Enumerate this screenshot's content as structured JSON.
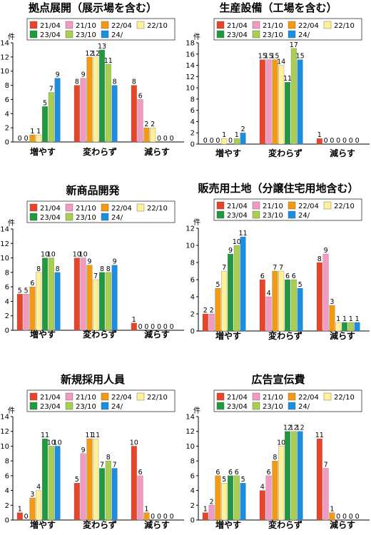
{
  "colors": {
    "21/04": "#e8442a",
    "21/10": "#f29ac2",
    "22/04": "#f39a11",
    "22/10": "#fff09a",
    "23/04": "#1f9a3e",
    "23/10": "#a8cf4f",
    "24/": "#1a8fe0"
  },
  "chart_data": [
    {
      "type": "bar",
      "title": "拠点展開（展示場を含む）",
      "ylabel": "件",
      "ylim": [
        0,
        14
      ],
      "yticks": [
        0,
        2,
        4,
        6,
        8,
        10,
        12,
        14
      ],
      "categories": [
        "増やす",
        "変わらず",
        "減らす"
      ],
      "legend_position": "top",
      "series": [
        {
          "name": "21/04",
          "values": [
            0,
            8,
            8
          ]
        },
        {
          "name": "21/10",
          "values": [
            0,
            9,
            6
          ]
        },
        {
          "name": "22/04",
          "values": [
            1,
            12,
            2
          ]
        },
        {
          "name": "22/10",
          "values": [
            1,
            12,
            2
          ]
        },
        {
          "name": "23/04",
          "values": [
            5,
            13,
            0
          ]
        },
        {
          "name": "23/10",
          "values": [
            7,
            11,
            0
          ]
        },
        {
          "name": "24/",
          "values": [
            9,
            8,
            0
          ]
        }
      ]
    },
    {
      "type": "bar",
      "title": "生産設備（工場を含む）",
      "ylabel": "件",
      "ylim": [
        0,
        18
      ],
      "yticks": [
        0,
        2,
        4,
        6,
        8,
        10,
        12,
        14,
        16,
        18
      ],
      "categories": [
        "増やす",
        "変わらず",
        "減らす"
      ],
      "legend_position": "top",
      "series": [
        {
          "name": "21/04",
          "values": [
            0,
            15,
            1
          ]
        },
        {
          "name": "21/10",
          "values": [
            0,
            15,
            0
          ]
        },
        {
          "name": "22/04",
          "values": [
            0,
            15,
            0
          ]
        },
        {
          "name": "22/10",
          "values": [
            1,
            14,
            0
          ]
        },
        {
          "name": "23/04",
          "values": [
            0,
            11,
            0
          ]
        },
        {
          "name": "23/10",
          "values": [
            1,
            17,
            0
          ]
        },
        {
          "name": "24/",
          "values": [
            2,
            15,
            0
          ]
        }
      ]
    },
    {
      "type": "bar",
      "title": "新商品開発",
      "ylabel": "件",
      "ylim": [
        0,
        14
      ],
      "yticks": [
        0,
        2,
        4,
        6,
        8,
        10,
        12,
        14
      ],
      "categories": [
        "増やす",
        "変わらず",
        "減らす"
      ],
      "legend_position": "top",
      "series": [
        {
          "name": "21/04",
          "values": [
            5,
            10,
            1
          ]
        },
        {
          "name": "21/10",
          "values": [
            5,
            10,
            0
          ]
        },
        {
          "name": "22/04",
          "values": [
            6,
            9,
            0
          ]
        },
        {
          "name": "22/10",
          "values": [
            8,
            7,
            0
          ]
        },
        {
          "name": "23/04",
          "values": [
            10,
            8,
            0
          ]
        },
        {
          "name": "23/10",
          "values": [
            10,
            8,
            0
          ]
        },
        {
          "name": "24/",
          "values": [
            8,
            9,
            0
          ]
        }
      ]
    },
    {
      "type": "bar",
      "title": "販売用土地（分譲住宅用地含む）",
      "ylabel": "件",
      "ylim": [
        0,
        12
      ],
      "yticks": [
        0,
        2,
        4,
        6,
        8,
        10,
        12
      ],
      "categories": [
        "増やす",
        "変わらず",
        "減らす"
      ],
      "legend_position": "top",
      "series": [
        {
          "name": "21/04",
          "values": [
            2,
            6,
            8
          ]
        },
        {
          "name": "21/10",
          "values": [
            2,
            4,
            9
          ]
        },
        {
          "name": "22/04",
          "values": [
            5,
            7,
            3
          ]
        },
        {
          "name": "22/10",
          "values": [
            7,
            7,
            1
          ]
        },
        {
          "name": "23/04",
          "values": [
            9,
            6,
            1
          ]
        },
        {
          "name": "23/10",
          "values": [
            10,
            6,
            1
          ]
        },
        {
          "name": "24/",
          "values": [
            11,
            5,
            1
          ]
        }
      ]
    },
    {
      "type": "bar",
      "title": "新規採用人員",
      "ylabel": "件",
      "ylim": [
        0,
        14
      ],
      "yticks": [
        0,
        2,
        4,
        6,
        8,
        10,
        12,
        14
      ],
      "categories": [
        "増やす",
        "変わらず",
        "減らす"
      ],
      "legend_position": "top",
      "series": [
        {
          "name": "21/04",
          "values": [
            1,
            5,
            10
          ]
        },
        {
          "name": "21/10",
          "values": [
            0,
            9,
            6
          ]
        },
        {
          "name": "22/04",
          "values": [
            3,
            11,
            1
          ]
        },
        {
          "name": "22/10",
          "values": [
            4,
            11,
            0
          ]
        },
        {
          "name": "23/04",
          "values": [
            11,
            7,
            0
          ]
        },
        {
          "name": "23/10",
          "values": [
            10,
            8,
            0
          ]
        },
        {
          "name": "24/",
          "values": [
            10,
            7,
            0
          ]
        }
      ]
    },
    {
      "type": "bar",
      "title": "広告宣伝費",
      "ylabel": "件",
      "ylim": [
        0,
        14
      ],
      "yticks": [
        0,
        2,
        4,
        6,
        8,
        10,
        12,
        14
      ],
      "categories": [
        "増やす",
        "変わらず",
        "減らす"
      ],
      "legend_position": "top",
      "series": [
        {
          "name": "21/04",
          "values": [
            1,
            4,
            11
          ]
        },
        {
          "name": "21/10",
          "values": [
            2,
            6,
            7
          ]
        },
        {
          "name": "22/04",
          "values": [
            6,
            8,
            1
          ]
        },
        {
          "name": "22/10",
          "values": [
            5,
            10,
            0
          ]
        },
        {
          "name": "23/04",
          "values": [
            6,
            12,
            0
          ]
        },
        {
          "name": "23/10",
          "values": [
            6,
            12,
            0
          ]
        },
        {
          "name": "24/",
          "values": [
            5,
            12,
            0
          ]
        }
      ]
    }
  ]
}
